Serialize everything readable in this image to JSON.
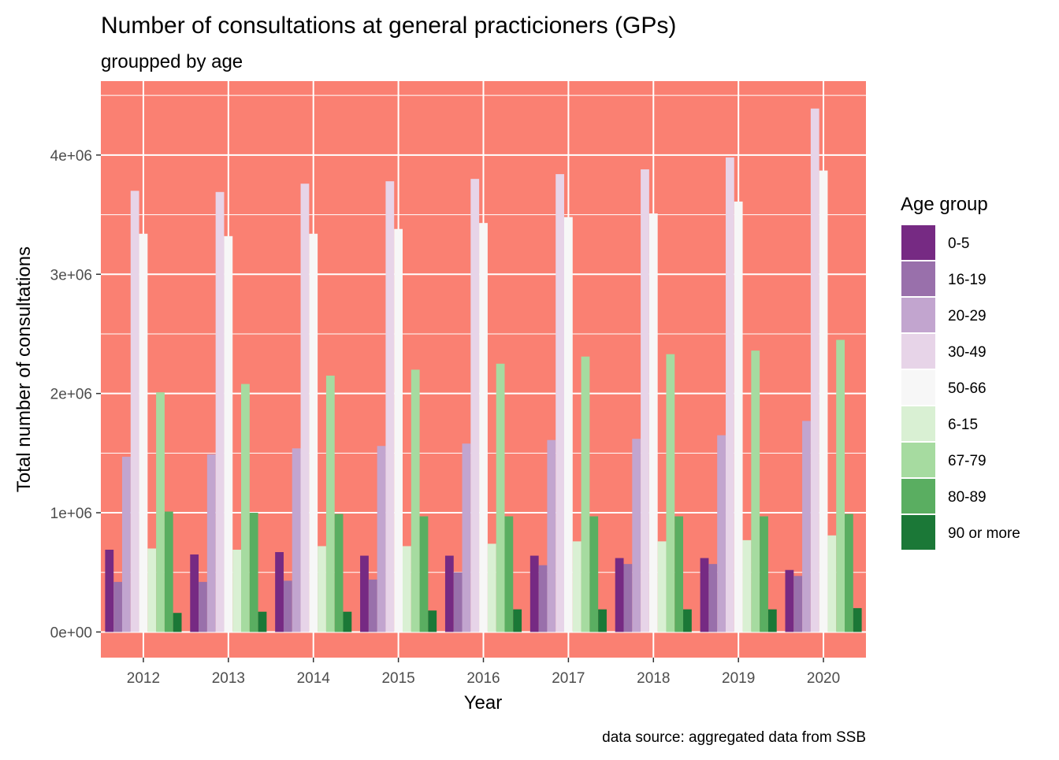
{
  "chart_data": {
    "type": "bar",
    "title": "Number of consultations at general practicioners (GPs)",
    "subtitle": "groupped by age",
    "xlabel": "Year",
    "ylabel": "Total number of  consultations",
    "caption": "data source: aggregated data from SSB",
    "legend_title": "Age group",
    "legend_position": "right",
    "panel_background": "#FA8072",
    "grid": true,
    "ylim": [
      -215000,
      4620000
    ],
    "y_ticks": [
      0,
      1000000,
      2000000,
      3000000,
      4000000
    ],
    "y_tick_labels": [
      "0e+00",
      "1e+06",
      "2e+06",
      "3e+06",
      "4e+06"
    ],
    "categories": [
      "2012",
      "2013",
      "2014",
      "2015",
      "2016",
      "2017",
      "2018",
      "2019",
      "2020"
    ],
    "series": [
      {
        "name": "0-5",
        "color": "#762A83",
        "values": [
          690000,
          650000,
          670000,
          640000,
          640000,
          640000,
          620000,
          620000,
          520000
        ]
      },
      {
        "name": "16-19",
        "color": "#9970AB",
        "values": [
          420000,
          420000,
          430000,
          440000,
          500000,
          560000,
          570000,
          570000,
          470000
        ]
      },
      {
        "name": "20-29",
        "color": "#C2A5CF",
        "values": [
          1470000,
          1490000,
          1540000,
          1560000,
          1580000,
          1610000,
          1620000,
          1650000,
          1770000
        ]
      },
      {
        "name": "30-49",
        "color": "#E7D4E8",
        "values": [
          3700000,
          3690000,
          3760000,
          3780000,
          3800000,
          3840000,
          3880000,
          3980000,
          4390000
        ]
      },
      {
        "name": "50-66",
        "color": "#F7F7F7",
        "values": [
          3340000,
          3320000,
          3340000,
          3380000,
          3430000,
          3480000,
          3510000,
          3610000,
          3870000
        ]
      },
      {
        "name": "6-15",
        "color": "#D9F0D3",
        "values": [
          700000,
          690000,
          720000,
          720000,
          740000,
          760000,
          760000,
          770000,
          810000
        ]
      },
      {
        "name": "67-79",
        "color": "#A6DBA0",
        "values": [
          2010000,
          2080000,
          2150000,
          2200000,
          2250000,
          2310000,
          2330000,
          2360000,
          2450000
        ]
      },
      {
        "name": "80-89",
        "color": "#5AAE61",
        "values": [
          1010000,
          1000000,
          990000,
          970000,
          970000,
          970000,
          970000,
          970000,
          990000
        ]
      },
      {
        "name": "90 or more",
        "color": "#1B7837",
        "values": [
          160000,
          170000,
          170000,
          180000,
          190000,
          190000,
          190000,
          190000,
          200000
        ]
      }
    ]
  }
}
